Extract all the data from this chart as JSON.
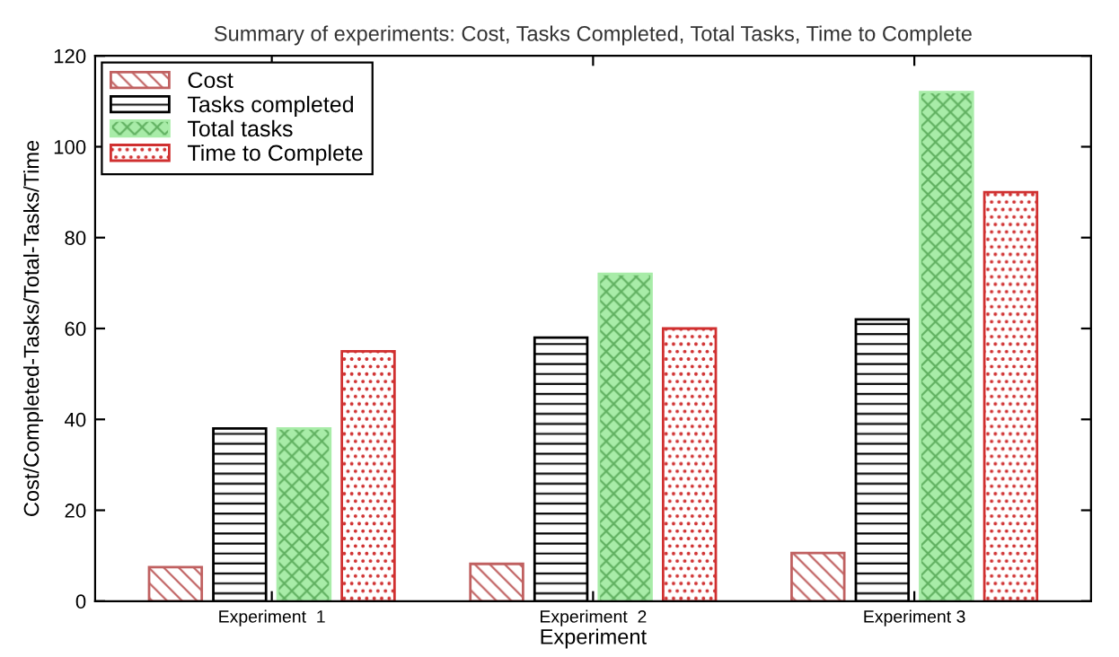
{
  "chart_data": {
    "type": "bar",
    "title": "Summary of experiments: Cost, Tasks Completed, Total Tasks, Time to Complete",
    "xlabel": "Experiment",
    "ylabel": "Cost/Completed-Tasks/Total-Tasks/Time",
    "categories": [
      "Experiment  1",
      "Experiment  2",
      "Experiment 3"
    ],
    "series": [
      {
        "name": "Cost",
        "color": "#c06060",
        "values": [
          7.5,
          8.2,
          10.6
        ]
      },
      {
        "name": "Tasks completed",
        "color": "#000000",
        "values": [
          38,
          58,
          62
        ]
      },
      {
        "name": "Total tasks",
        "color": "#a8eca8",
        "values": [
          38,
          72,
          112
        ]
      },
      {
        "name": "Time to Complete",
        "color": "#d03030",
        "values": [
          55,
          60,
          90
        ]
      }
    ],
    "ylim": [
      0,
      120
    ],
    "yticks": [
      0,
      20,
      40,
      60,
      80,
      100,
      120
    ],
    "grid": false,
    "legend": "top left"
  }
}
